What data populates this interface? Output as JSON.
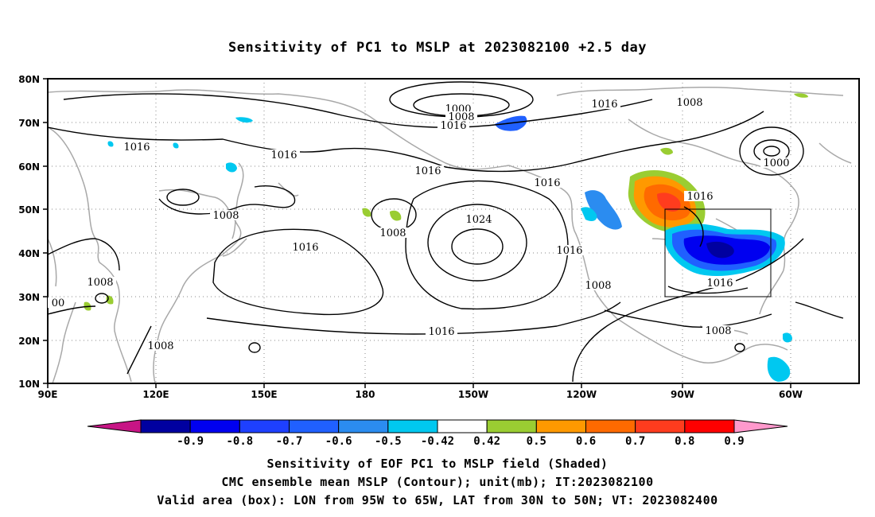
{
  "title": "Sensitivity of PC1 to MSLP at 2023082100 +2.5 day",
  "lat_labels": [
    "80N",
    "70N",
    "60N",
    "50N",
    "40N",
    "30N",
    "20N",
    "10N"
  ],
  "lon_labels": [
    "90E",
    "120E",
    "150E",
    "180",
    "150W",
    "120W",
    "90W",
    "60W"
  ],
  "contour_labels": [
    "1000",
    "1008",
    "1016",
    "1016",
    "1016",
    "1000",
    "1008",
    "1008",
    "1016",
    "1008",
    "1024",
    "1016",
    "1016",
    "1008",
    "1016",
    "1016",
    "00",
    "1008",
    "1016",
    "1008",
    "1008"
  ],
  "colorbar": {
    "ticks": [
      "-0.9",
      "-0.8",
      "-0.7",
      "-0.6",
      "-0.5",
      "-0.42",
      "0.42",
      "0.5",
      "0.6",
      "0.7",
      "0.8",
      "0.9"
    ],
    "colors": [
      "#c71585",
      "#0000a0",
      "#0000f0",
      "#1e40ff",
      "#2060ff",
      "#2b8cf0",
      "#00c8f0",
      "#ffffff",
      "#9acd32",
      "#ff9900",
      "#ff6a00",
      "#ff3c1e",
      "#ff0000",
      "#ff99cc"
    ]
  },
  "footer": {
    "line1": "Sensitivity of EOF PC1 to MSLP field (Shaded)",
    "line2": "CMC ensemble mean MSLP (Contour); unit(mb); IT:2023082100",
    "line3": "Valid area (box): LON from 95W to 65W, LAT from 30N to 50N; VT: 2023082400"
  }
}
